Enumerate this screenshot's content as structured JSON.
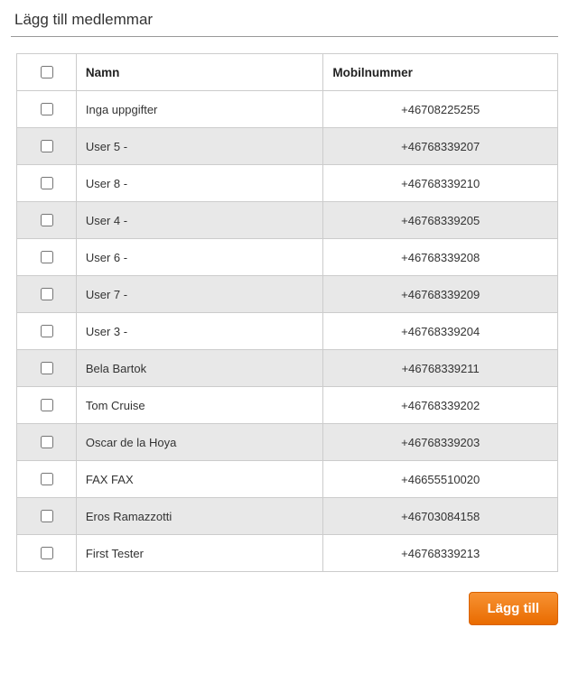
{
  "title": "Lägg till medlemmar",
  "columns": {
    "name": "Namn",
    "mobile": "Mobilnummer"
  },
  "rows": [
    {
      "name": "Inga uppgifter",
      "mobile": "+46708225255"
    },
    {
      "name": "User 5 -",
      "mobile": "+46768339207"
    },
    {
      "name": "User 8 -",
      "mobile": "+46768339210"
    },
    {
      "name": "User 4 -",
      "mobile": "+46768339205"
    },
    {
      "name": "User 6 -",
      "mobile": "+46768339208"
    },
    {
      "name": "User 7 -",
      "mobile": "+46768339209"
    },
    {
      "name": "User 3 -",
      "mobile": "+46768339204"
    },
    {
      "name": "Bela Bartok",
      "mobile": "+46768339211"
    },
    {
      "name": "Tom Cruise",
      "mobile": "+46768339202"
    },
    {
      "name": "Oscar de la Hoya",
      "mobile": "+46768339203"
    },
    {
      "name": "FAX FAX",
      "mobile": "+46655510020"
    },
    {
      "name": "Eros Ramazzotti",
      "mobile": "+46703084158"
    },
    {
      "name": "First Tester",
      "mobile": "+46768339213"
    }
  ],
  "button": {
    "add_label": "Lägg till"
  },
  "style": {
    "header_bg": "#ffffff",
    "row_even_bg": "#ffffff",
    "row_odd_bg": "#e8e8e8",
    "border_color": "#cccccc",
    "button_gradient_top": "#f79233",
    "button_gradient_bottom": "#e96b00",
    "button_text_color": "#ffffff",
    "font_family": "Arial, Helvetica, sans-serif",
    "title_fontsize": 17,
    "cell_fontsize": 13
  }
}
